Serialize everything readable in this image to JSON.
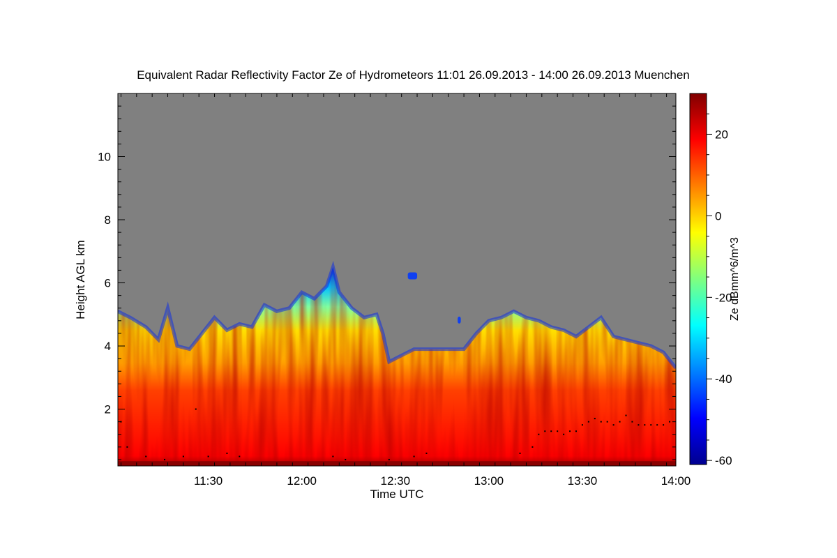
{
  "chart_data": {
    "type": "heatmap",
    "title": "Equivalent Radar Reflectivity Factor Ze of Hydrometeors   11:01 26.09.2013 - 14:00 26.09.2013 Muenchen",
    "xlabel": "Time UTC",
    "ylabel": "Height AGL km",
    "xlim": [
      "11:01",
      "14:00"
    ],
    "ylim": [
      0.2,
      12.0
    ],
    "x_ticks": [
      "11:30",
      "12:00",
      "12:30",
      "13:00",
      "13:30",
      "14:00"
    ],
    "y_ticks": [
      "2",
      "4",
      "6",
      "8",
      "10"
    ],
    "colorbar": {
      "label": "Ze dBmm^6/m^3",
      "range": [
        -61,
        30
      ],
      "ticks": [
        "20",
        "0",
        "-20",
        "-40",
        "-60"
      ],
      "colormap": "jet"
    },
    "colors": {
      "no_signal": "#808080"
    },
    "echo_top_profile_km": {
      "times": [
        "11:01",
        "11:05",
        "11:10",
        "11:14",
        "11:17",
        "11:20",
        "11:24",
        "11:28",
        "11:32",
        "11:36",
        "11:40",
        "11:44",
        "11:48",
        "11:52",
        "11:56",
        "12:00",
        "12:04",
        "12:08",
        "12:10",
        "12:12",
        "12:16",
        "12:20",
        "12:24",
        "12:26",
        "12:28",
        "12:32",
        "12:36",
        "12:40",
        "12:44",
        "12:48",
        "12:52",
        "12:56",
        "13:00",
        "13:04",
        "13:08",
        "13:12",
        "13:16",
        "13:20",
        "13:24",
        "13:28",
        "13:32",
        "13:36",
        "13:40",
        "13:44",
        "13:48",
        "13:52",
        "13:56",
        "14:00"
      ],
      "heights": [
        5.1,
        4.9,
        4.6,
        4.2,
        5.2,
        4.0,
        3.9,
        4.4,
        4.9,
        4.5,
        4.7,
        4.6,
        5.3,
        5.1,
        5.2,
        5.7,
        5.5,
        5.9,
        6.5,
        5.7,
        5.2,
        4.9,
        5.0,
        4.4,
        3.5,
        3.7,
        3.9,
        3.9,
        3.9,
        3.9,
        3.9,
        4.4,
        4.8,
        4.9,
        5.1,
        4.9,
        4.8,
        4.6,
        4.5,
        4.3,
        4.6,
        4.9,
        4.3,
        4.2,
        4.1,
        4.0,
        3.8,
        3.3
      ]
    },
    "detached_echoes": [
      {
        "time_start": "12:34",
        "time_end": "12:37",
        "height_km": 6.2
      },
      {
        "time_start": "12:50",
        "time_end": "12:51",
        "height_km": 4.8
      }
    ],
    "cloud_base_points_km": {
      "times": [
        "11:02",
        "11:04",
        "11:10",
        "11:16",
        "11:22",
        "11:26",
        "11:30",
        "11:36",
        "11:40",
        "12:10",
        "12:14",
        "12:28",
        "12:36",
        "12:40",
        "13:10",
        "13:14",
        "13:16",
        "13:18",
        "13:20",
        "13:22",
        "13:24",
        "13:26",
        "13:28",
        "13:30",
        "13:32",
        "13:34",
        "13:36",
        "13:38",
        "13:40",
        "13:42",
        "13:44",
        "13:46",
        "13:48",
        "13:50",
        "13:52",
        "13:54",
        "13:56",
        "13:58"
      ],
      "heights": [
        1.6,
        0.8,
        0.5,
        0.4,
        0.5,
        2.0,
        0.5,
        0.6,
        0.5,
        0.5,
        0.4,
        0.4,
        0.5,
        0.6,
        0.6,
        0.8,
        1.2,
        1.3,
        1.3,
        1.3,
        1.2,
        1.3,
        1.3,
        1.5,
        1.6,
        1.7,
        1.6,
        1.6,
        1.5,
        1.6,
        1.8,
        1.6,
        1.5,
        1.5,
        1.5,
        1.5,
        1.5,
        1.6
      ]
    }
  }
}
